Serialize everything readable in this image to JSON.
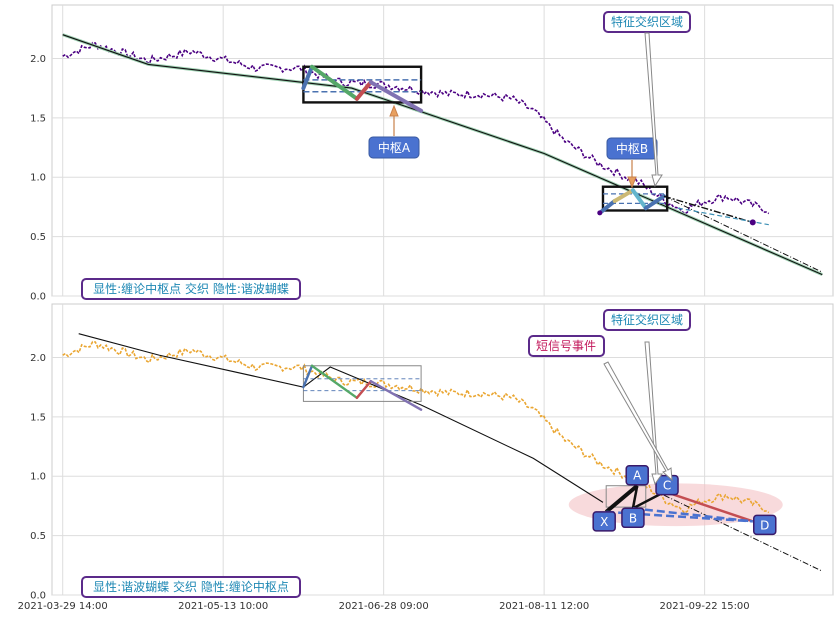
{
  "chart_data": [
    {
      "type": "line",
      "panel": "top",
      "yticks": [
        "0.0",
        "0.5",
        "1.0",
        "1.5",
        "2.0"
      ],
      "ylim": [
        0,
        2.45
      ],
      "grid": true,
      "legend": "显性:缠论中枢点 交织 隐性:谐波蝴蝶",
      "annotations": {
        "zs_a": "中枢A",
        "zs_b": "中枢B",
        "feature": "特征交织区域"
      },
      "price_color": "#4b0082",
      "trend_line": {
        "x": [
          0,
          8,
          27,
          45,
          71
        ],
        "y": [
          2.2,
          1.95,
          1.75,
          1.2,
          0.18
        ]
      },
      "price_anchor": {
        "x": [
          0,
          3,
          8,
          12,
          18,
          22,
          26,
          30,
          33,
          36,
          39,
          42,
          44,
          47,
          50,
          52,
          54,
          56,
          58,
          60,
          62,
          64,
          66
        ],
        "y": [
          2.02,
          2.12,
          1.98,
          2.06,
          1.92,
          1.92,
          1.8,
          1.78,
          1.74,
          1.7,
          1.7,
          1.66,
          1.56,
          1.3,
          1.12,
          1.03,
          0.95,
          0.82,
          0.72,
          0.8,
          0.84,
          0.78,
          0.72
        ]
      },
      "zs_a_box": {
        "x": [
          22.5,
          33.5
        ],
        "y": [
          1.63,
          1.93
        ]
      },
      "zs_a_lines": [
        1.82,
        1.72
      ],
      "zs_b_box": {
        "x": [
          50.5,
          56.5
        ],
        "y": [
          0.72,
          0.92
        ]
      },
      "zs_b_lines": [
        0.86,
        0.78
      ],
      "segments_a": [
        {
          "x": [
            22.5,
            23.3
          ],
          "y": [
            1.75,
            1.93
          ],
          "color": "#4a72b0"
        },
        {
          "x": [
            23.3,
            27.5
          ],
          "y": [
            1.93,
            1.66
          ],
          "color": "#55a868"
        },
        {
          "x": [
            27.5,
            28.8
          ],
          "y": [
            1.66,
            1.8
          ],
          "color": "#c44e52"
        },
        {
          "x": [
            28.8,
            33.5
          ],
          "y": [
            1.8,
            1.56
          ],
          "color": "#8172b2"
        }
      ],
      "segments_b": [
        {
          "x": [
            50.2,
            51.6
          ],
          "y": [
            0.7,
            0.8
          ],
          "color": "#4a72b0"
        },
        {
          "x": [
            51.6,
            53.3
          ],
          "y": [
            0.8,
            0.89
          ],
          "color": "#ccb974"
        },
        {
          "x": [
            53.3,
            54.5
          ],
          "y": [
            0.89,
            0.74
          ],
          "color": "#64b5cd"
        },
        {
          "x": [
            54.5,
            56.2
          ],
          "y": [
            0.74,
            0.84
          ],
          "color": "#4a72b0"
        }
      ],
      "end_dotted": {
        "x": [
          56.2,
          64.5
        ],
        "y": [
          0.84,
          0.62
        ]
      },
      "end_dashed": {
        "x": [
          57.5,
          66
        ],
        "y": [
          0.74,
          0.6
        ]
      },
      "end_dashdot": {
        "x": [
          56.2,
          71
        ],
        "y": [
          0.84,
          0.2
        ]
      }
    },
    {
      "type": "line",
      "panel": "bottom",
      "yticks": [
        "0.0",
        "0.5",
        "1.0",
        "1.5",
        "2.0"
      ],
      "ylim": [
        0,
        2.45
      ],
      "grid": true,
      "xticks": [
        "2021-03-29 14:00",
        "2021-05-13 10:00",
        "2021-06-28 09:00",
        "2021-08-11 12:00",
        "2021-09-22 15:00"
      ],
      "xlim": [
        -1,
        72
      ],
      "legend": "显性:谐波蝴蝶 交织 隐性:缠论中枢点",
      "annotations": {
        "feature": "特征交织区域",
        "signal": "短信号事件"
      },
      "price_color": "#eaa632",
      "trend_line": {
        "x": [
          1.5,
          9,
          22.5,
          25,
          33.5,
          44,
          50.5
        ],
        "y": [
          2.2,
          2.02,
          1.75,
          1.92,
          1.6,
          1.15,
          0.78
        ]
      },
      "zs_box": {
        "x": [
          22.5,
          33.5
        ],
        "y": [
          1.63,
          1.93
        ]
      },
      "zs_lines": [
        1.82,
        1.72
      ],
      "segments": [
        {
          "x": [
            22.5,
            23.3
          ],
          "y": [
            1.75,
            1.93
          ],
          "color": "#4a72b0"
        },
        {
          "x": [
            23.3,
            27.5
          ],
          "y": [
            1.93,
            1.66
          ],
          "color": "#55a868"
        },
        {
          "x": [
            27.5,
            28.8
          ],
          "y": [
            1.66,
            1.8
          ],
          "color": "#c44e52"
        },
        {
          "x": [
            28.8,
            33.5
          ],
          "y": [
            1.8,
            1.56
          ],
          "color": "#8172b2"
        }
      ],
      "small_box": {
        "x": [
          50.8,
          54.5
        ],
        "y": [
          0.74,
          0.92
        ]
      },
      "harmonic_points": {
        "labels": [
          "X",
          "A",
          "B",
          "C",
          "D"
        ],
        "x": [
          50.8,
          53.7,
          53.3,
          56.3,
          64.5
        ],
        "y": [
          0.7,
          0.92,
          0.73,
          0.87,
          0.62
        ]
      },
      "end_dashdot": {
        "x": [
          56.2,
          71
        ],
        "y": [
          0.84,
          0.2
        ]
      },
      "ellipse": {
        "cx": 57.3,
        "cy": 0.76,
        "rx": 10,
        "ry": 0.18,
        "color": "#f4c2c5"
      }
    }
  ]
}
